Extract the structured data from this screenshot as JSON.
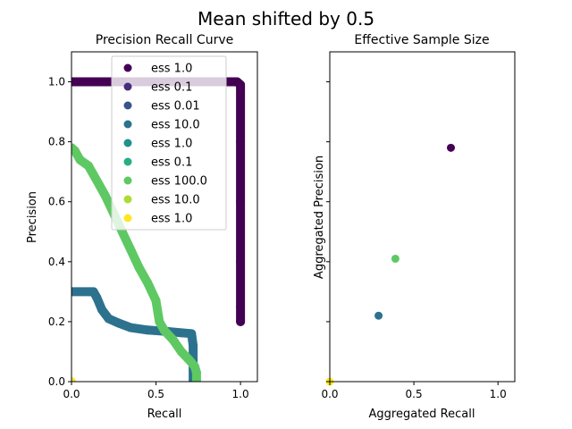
{
  "figure": {
    "suptitle": "Mean shifted by  0.5"
  },
  "chart_data": [
    {
      "type": "scatter",
      "title": "Precision Recall Curve",
      "xlabel": "Recall",
      "ylabel": "Precision",
      "xlim": [
        0.0,
        1.1
      ],
      "ylim": [
        0.0,
        1.1
      ],
      "xticks": [
        0.0,
        0.5,
        1.0
      ],
      "xtick_labels": [
        "0.0",
        "0.5",
        "1.0"
      ],
      "yticks": [
        0.0,
        0.2,
        0.4,
        0.6,
        0.8,
        1.0
      ],
      "ytick_labels": [
        "0.0",
        "0.2",
        "0.4",
        "0.6",
        "0.8",
        "1.0"
      ],
      "grid": false,
      "legend_placement": "top-center",
      "legend": [
        {
          "label": "ess 1.0",
          "color": "#440154"
        },
        {
          "label": "ess 0.1",
          "color": "#472d7b"
        },
        {
          "label": "ess 0.01",
          "color": "#3b528b"
        },
        {
          "label": "ess 10.0",
          "color": "#2c728e"
        },
        {
          "label": "ess 1.0",
          "color": "#21918c"
        },
        {
          "label": "ess 0.1",
          "color": "#28ae80"
        },
        {
          "label": "ess 100.0",
          "color": "#5ec962"
        },
        {
          "label": "ess 10.0",
          "color": "#addc30"
        },
        {
          "label": "ess 1.0",
          "color": "#fde725"
        }
      ],
      "series": [
        {
          "name": "ess 1.0",
          "color": "#440154",
          "x": [
            0.0,
            0.2,
            0.4,
            0.6,
            0.8,
            0.95,
            0.98,
            1.0,
            1.0,
            1.0,
            1.0,
            1.0,
            1.0
          ],
          "y": [
            1.0,
            1.0,
            1.0,
            1.0,
            1.0,
            1.0,
            1.0,
            0.99,
            0.8,
            0.6,
            0.4,
            0.25,
            0.2
          ]
        },
        {
          "name": "ess 10.0",
          "color": "#2c728e",
          "x": [
            0.0,
            0.1,
            0.13,
            0.15,
            0.18,
            0.22,
            0.28,
            0.35,
            0.45,
            0.55,
            0.65,
            0.71,
            0.72,
            0.72,
            0.72
          ],
          "y": [
            0.3,
            0.3,
            0.3,
            0.28,
            0.24,
            0.21,
            0.195,
            0.18,
            0.172,
            0.168,
            0.163,
            0.16,
            0.12,
            0.06,
            0.0
          ]
        },
        {
          "name": "ess 100.0",
          "color": "#5ec962",
          "x": [
            0.0,
            0.02,
            0.05,
            0.1,
            0.15,
            0.2,
            0.25,
            0.3,
            0.35,
            0.4,
            0.45,
            0.5,
            0.52,
            0.55,
            0.6,
            0.65,
            0.7,
            0.73,
            0.74,
            0.74
          ],
          "y": [
            0.78,
            0.77,
            0.74,
            0.72,
            0.67,
            0.62,
            0.56,
            0.5,
            0.44,
            0.38,
            0.33,
            0.27,
            0.2,
            0.17,
            0.14,
            0.1,
            0.07,
            0.05,
            0.03,
            0.0
          ]
        },
        {
          "name": "ess 1.0",
          "color": "#fde725",
          "x": [
            0.0
          ],
          "y": [
            0.0
          ]
        }
      ]
    },
    {
      "type": "scatter",
      "title": "Effective Sample Size",
      "xlabel": "Aggregated Recall",
      "ylabel": "Aggregated Precision",
      "xlim": [
        0.0,
        1.1
      ],
      "ylim": [
        0.0,
        1.1
      ],
      "xticks": [
        0.0,
        0.5,
        1.0
      ],
      "xtick_labels": [
        "0.0",
        "0.5",
        "1.0"
      ],
      "yticks": [
        0.0,
        0.2,
        0.4,
        0.6,
        0.8,
        1.0
      ],
      "ytick_labels": [],
      "grid": false,
      "points": [
        {
          "x": 0.72,
          "y": 0.78,
          "color": "#440154"
        },
        {
          "x": 0.39,
          "y": 0.41,
          "color": "#5ec962"
        },
        {
          "x": 0.29,
          "y": 0.22,
          "color": "#2c728e"
        },
        {
          "x": 0.0,
          "y": 0.0,
          "color": "#fde725"
        }
      ]
    }
  ]
}
